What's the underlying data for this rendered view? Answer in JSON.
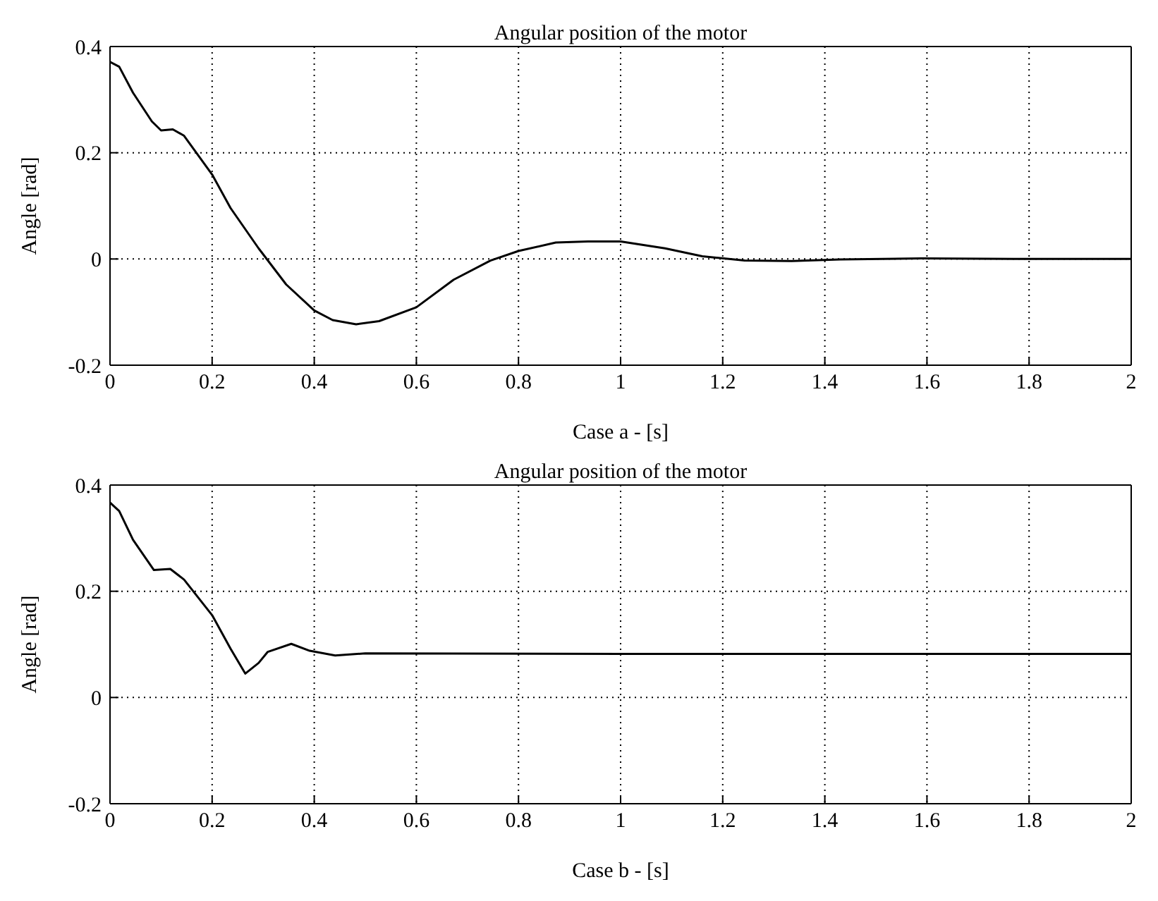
{
  "chart_data": [
    {
      "type": "line",
      "title": "Angular position of the motor",
      "xlabel": "Case a - [s]",
      "ylabel": "Angle [rad]",
      "xlim": [
        0,
        2
      ],
      "xticks": [
        0,
        0.2,
        0.4,
        0.6,
        0.8,
        1,
        1.2,
        1.4,
        1.6,
        1.8,
        2
      ],
      "ylim": [
        -0.2,
        0.4
      ],
      "yticks": [
        -0.2,
        0,
        0.2,
        0.4
      ],
      "grid": true,
      "line_style": "solid",
      "marker": "none",
      "series": [
        {
          "color": "#000000",
          "x": [
            0,
            0.018,
            0.045,
            0.082,
            0.1,
            0.123,
            0.145,
            0.2,
            0.236,
            0.291,
            0.345,
            0.4,
            0.436,
            0.482,
            0.527,
            0.6,
            0.673,
            0.745,
            0.8,
            0.873,
            0.936,
            1.0,
            1.087,
            1.16,
            1.243,
            1.335,
            1.43,
            1.59,
            1.77,
            2.0
          ],
          "values": [
            0.371,
            0.362,
            0.313,
            0.259,
            0.242,
            0.244,
            0.232,
            0.159,
            0.096,
            0.02,
            -0.048,
            -0.097,
            -0.115,
            -0.123,
            -0.117,
            -0.091,
            -0.039,
            -0.003,
            0.015,
            0.031,
            0.033,
            0.033,
            0.02,
            0.005,
            -0.003,
            -0.004,
            -0.001,
            0.001,
            0,
            0
          ]
        }
      ]
    },
    {
      "type": "line",
      "title": "Angular position of the motor",
      "xlabel": "Case b - [s]",
      "ylabel": "Angle [rad]",
      "xlim": [
        0,
        2
      ],
      "xticks": [
        0,
        0.2,
        0.4,
        0.6,
        0.8,
        1,
        1.2,
        1.4,
        1.6,
        1.8,
        2
      ],
      "ylim": [
        -0.2,
        0.4
      ],
      "yticks": [
        -0.2,
        0,
        0.2,
        0.4
      ],
      "grid": true,
      "line_style": "solid",
      "marker": "none",
      "series": [
        {
          "color": "#000000",
          "x": [
            0,
            0.018,
            0.045,
            0.086,
            0.118,
            0.145,
            0.2,
            0.236,
            0.265,
            0.291,
            0.309,
            0.355,
            0.391,
            0.441,
            0.5,
            1.0,
            1.5,
            2.0
          ],
          "values": [
            0.367,
            0.351,
            0.297,
            0.24,
            0.242,
            0.222,
            0.155,
            0.092,
            0.045,
            0.065,
            0.086,
            0.101,
            0.088,
            0.079,
            0.083,
            0.082,
            0.082,
            0.082
          ]
        }
      ]
    }
  ]
}
